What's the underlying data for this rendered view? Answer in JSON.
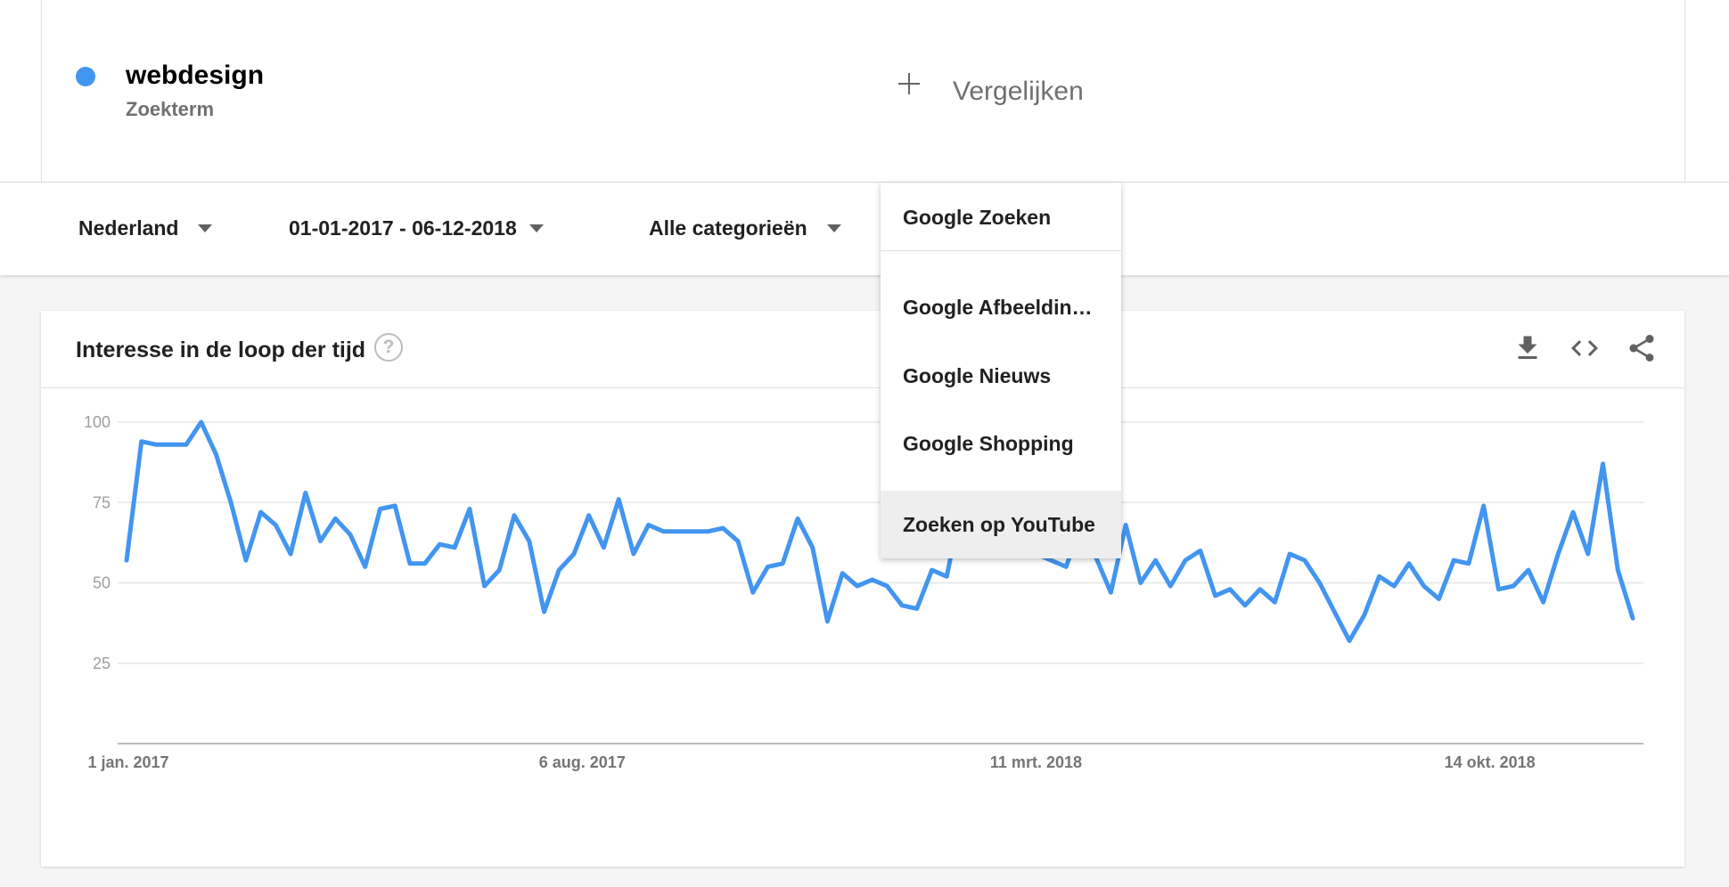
{
  "term": {
    "name": "webdesign",
    "type": "Zoekterm",
    "color": "#4295f0"
  },
  "compare": {
    "label": "Vergelijken"
  },
  "filters": {
    "region": "Nederland",
    "daterange": "01-01-2017 - 06-12-2018",
    "category": "Alle categorieën"
  },
  "dropdown": {
    "selected": "Google Zoeken",
    "options": [
      "Google Afbeelding…",
      "Google Nieuws",
      "Google Shopping",
      "Zoeken op YouTube"
    ]
  },
  "card": {
    "title": "Interesse in de loop der tijd",
    "help": "?"
  },
  "chart_data": {
    "type": "line",
    "xlabel": "",
    "ylabel": "",
    "ylim": [
      0,
      100
    ],
    "yticks": [
      25,
      50,
      75,
      100
    ],
    "xtick_labels": [
      "1 jan. 2017",
      "6 aug. 2017",
      "11 mrt. 2018",
      "14 okt. 2018"
    ],
    "x_range": [
      "2017-01-01",
      "2018-12-02"
    ],
    "grid": true,
    "series": [
      {
        "name": "webdesign",
        "color": "#4295f0",
        "values": [
          57,
          94,
          93,
          93,
          93,
          100,
          90,
          75,
          57,
          72,
          68,
          59,
          78,
          63,
          70,
          65,
          55,
          73,
          74,
          56,
          56,
          62,
          61,
          73,
          49,
          54,
          71,
          63,
          41,
          54,
          59,
          71,
          61,
          76,
          59,
          68,
          66,
          66,
          66,
          66,
          67,
          63,
          47,
          55,
          56,
          70,
          61,
          38,
          53,
          49,
          51,
          49,
          43,
          42,
          54,
          52,
          75,
          70,
          78,
          62,
          62,
          59,
          57,
          55,
          68,
          58,
          47,
          68,
          50,
          57,
          49,
          57,
          60,
          46,
          48,
          43,
          48,
          44,
          59,
          57,
          50,
          41,
          32,
          40,
          52,
          49,
          56,
          49,
          45,
          57,
          56,
          74,
          48,
          49,
          54,
          44,
          59,
          72,
          59,
          87,
          54,
          39
        ]
      }
    ]
  }
}
